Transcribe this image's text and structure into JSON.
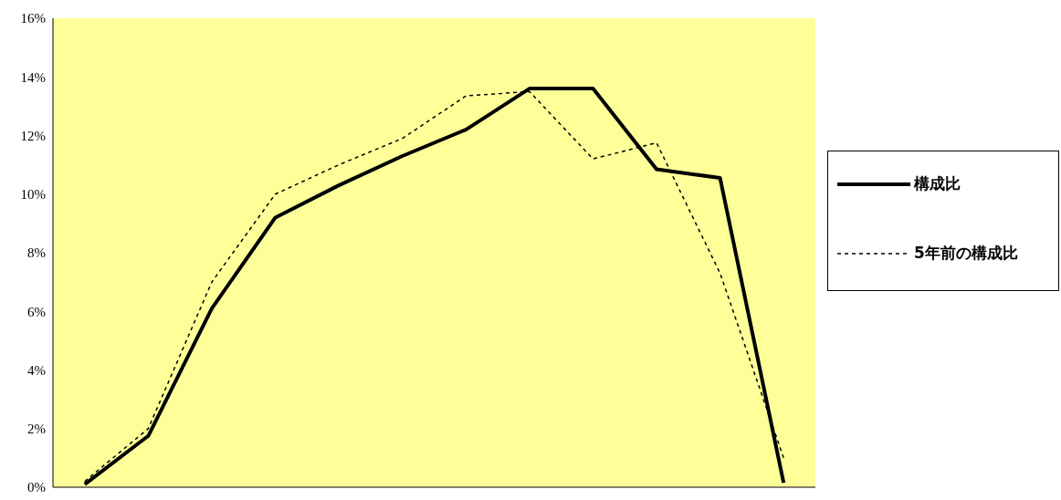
{
  "chart_data": {
    "type": "line",
    "categories": [
      null,
      null,
      null,
      null,
      null,
      null,
      null,
      null,
      null,
      null,
      null,
      null
    ],
    "series": [
      {
        "name": "構成比",
        "color": "#000000",
        "line_style": "solid",
        "values": [
          0.1,
          1.75,
          6.1,
          9.2,
          10.3,
          11.3,
          12.2,
          13.6,
          13.6,
          10.85,
          10.55,
          0.15
        ]
      },
      {
        "name": "5年前の構成比",
        "color": "#000000",
        "line_style": "dashed",
        "values": [
          0.2,
          2.0,
          7.0,
          10.0,
          11.0,
          11.9,
          13.35,
          13.5,
          11.2,
          11.75,
          7.3,
          1.0
        ]
      }
    ],
    "ylim": [
      0,
      16
    ],
    "yticks": [
      {
        "value": 0,
        "label": "0%"
      },
      {
        "value": 2,
        "label": "2%"
      },
      {
        "value": 4,
        "label": "4%"
      },
      {
        "value": 6,
        "label": "6%"
      },
      {
        "value": 8,
        "label": "8%"
      },
      {
        "value": 10,
        "label": "10%"
      },
      {
        "value": 12,
        "label": "12%"
      },
      {
        "value": 14,
        "label": "14%"
      },
      {
        "value": 16,
        "label": "16%"
      }
    ],
    "grid": false,
    "legend": "right",
    "marker": "none"
  }
}
